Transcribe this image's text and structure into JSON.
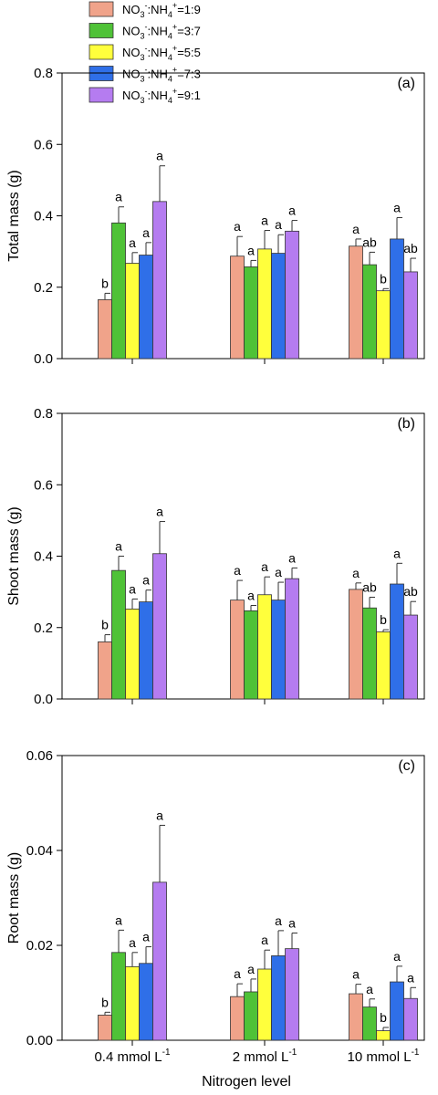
{
  "colors": [
    "#f0a38a",
    "#4fc237",
    "#ffff3c",
    "#2f6fe8",
    "#b57cf0"
  ],
  "legend": [
    {
      "base": "NO",
      "sub1": "3",
      "sup1": "-",
      "mid": ":NH",
      "sub2": "4",
      "sup2": "+",
      "ratio": "=1:9"
    },
    {
      "base": "NO",
      "sub1": "3",
      "sup1": "-",
      "mid": ":NH",
      "sub2": "4",
      "sup2": "+",
      "ratio": "=3:7"
    },
    {
      "base": "NO",
      "sub1": "3",
      "sup1": "-",
      "mid": ":NH",
      "sub2": "4",
      "sup2": "+",
      "ratio": "=5:5"
    },
    {
      "base": "NO",
      "sub1": "3",
      "sup1": "-",
      "mid": ":NH",
      "sub2": "4",
      "sup2": "+",
      "ratio": "=7:3"
    },
    {
      "base": "NO",
      "sub1": "3",
      "sup1": "-",
      "mid": ":NH",
      "sub2": "4",
      "sup2": "+",
      "ratio": "=9:1"
    }
  ],
  "x_axis": {
    "title": "Nitrogen level",
    "tick_labels": [
      {
        "main": "0.4 mmol L",
        "sup": "-1"
      },
      {
        "main": "2 mmol L",
        "sup": "-1"
      },
      {
        "main": "10 mmol L",
        "sup": "-1"
      }
    ]
  },
  "chart_data": [
    {
      "type": "bar",
      "panel_label": "(a)",
      "ylabel": "Total mass (g)",
      "ylim": [
        0,
        0.8
      ],
      "yticks": [
        "0.0",
        "0.2",
        "0.4",
        "0.6",
        "0.8"
      ],
      "categories": [
        "0.4 mmol L-1",
        "2 mmol L-1",
        "10 mmol L-1"
      ],
      "series": [
        {
          "name": "NO3-:NH4+=1:9",
          "values": [
            0.165,
            0.287,
            0.315
          ],
          "errors": [
            0.018,
            0.055,
            0.02
          ],
          "letters": [
            "b",
            "a",
            "a"
          ]
        },
        {
          "name": "NO3-:NH4+=3:7",
          "values": [
            0.38,
            0.257,
            0.263
          ],
          "errors": [
            0.045,
            0.018,
            0.035
          ],
          "letters": [
            "a",
            "a",
            "ab"
          ]
        },
        {
          "name": "NO3-:NH4+=5:5",
          "values": [
            0.267,
            0.307,
            0.19
          ],
          "errors": [
            0.03,
            0.052,
            0.006
          ],
          "letters": [
            "a",
            "a",
            "b"
          ]
        },
        {
          "name": "NO3-:NH4+=7:3",
          "values": [
            0.29,
            0.295,
            0.335
          ],
          "errors": [
            0.035,
            0.052,
            0.06
          ],
          "letters": [
            "a",
            "a",
            "a"
          ]
        },
        {
          "name": "NO3-:NH4+=9:1",
          "values": [
            0.44,
            0.357,
            0.243
          ],
          "errors": [
            0.1,
            0.03,
            0.038
          ],
          "letters": [
            "a",
            "a",
            "ab"
          ]
        }
      ]
    },
    {
      "type": "bar",
      "panel_label": "(b)",
      "ylabel": "Shoot mass (g)",
      "ylim": [
        0,
        0.8
      ],
      "yticks": [
        "0.0",
        "0.2",
        "0.4",
        "0.6",
        "0.8"
      ],
      "categories": [
        "0.4 mmol L-1",
        "2 mmol L-1",
        "10 mmol L-1"
      ],
      "series": [
        {
          "name": "NO3-:NH4+=1:9",
          "values": [
            0.16,
            0.277,
            0.307
          ],
          "errors": [
            0.02,
            0.055,
            0.018
          ],
          "letters": [
            "b",
            "a",
            "a"
          ]
        },
        {
          "name": "NO3-:NH4+=3:7",
          "values": [
            0.36,
            0.247,
            0.255
          ],
          "errors": [
            0.04,
            0.015,
            0.03
          ],
          "letters": [
            "a",
            "a",
            "ab"
          ]
        },
        {
          "name": "NO3-:NH4+=5:5",
          "values": [
            0.252,
            0.292,
            0.188
          ],
          "errors": [
            0.028,
            0.05,
            0.006
          ],
          "letters": [
            "a",
            "a",
            "b"
          ]
        },
        {
          "name": "NO3-:NH4+=7:3",
          "values": [
            0.272,
            0.277,
            0.322
          ],
          "errors": [
            0.033,
            0.05,
            0.058
          ],
          "letters": [
            "a",
            "a",
            "a"
          ]
        },
        {
          "name": "NO3-:NH4+=9:1",
          "values": [
            0.407,
            0.337,
            0.235
          ],
          "errors": [
            0.09,
            0.03,
            0.038
          ],
          "letters": [
            "a",
            "a",
            "ab"
          ]
        }
      ]
    },
    {
      "type": "bar",
      "panel_label": "(c)",
      "ylabel": "Root mass (g)",
      "ylim": [
        0,
        0.06
      ],
      "yticks": [
        "0.00",
        "0.02",
        "0.04",
        "0.06"
      ],
      "categories": [
        "0.4 mmol L-1",
        "2 mmol L-1",
        "10 mmol L-1"
      ],
      "series": [
        {
          "name": "NO3-:NH4+=1:9",
          "values": [
            0.0053,
            0.0092,
            0.0098
          ],
          "errors": [
            0.0006,
            0.0027,
            0.002
          ],
          "letters": [
            "b",
            "a",
            "a"
          ]
        },
        {
          "name": "NO3-:NH4+=3:7",
          "values": [
            0.0185,
            0.0102,
            0.007
          ],
          "errors": [
            0.0047,
            0.0027,
            0.0017
          ],
          "letters": [
            "a",
            "a",
            "a"
          ]
        },
        {
          "name": "NO3-:NH4+=5:5",
          "values": [
            0.0155,
            0.015,
            0.002
          ],
          "errors": [
            0.003,
            0.004,
            0.0007
          ],
          "letters": [
            "a",
            "a",
            "b"
          ]
        },
        {
          "name": "NO3-:NH4+=7:3",
          "values": [
            0.0162,
            0.0178,
            0.0123
          ],
          "errors": [
            0.0035,
            0.0053,
            0.0033
          ],
          "letters": [
            "a",
            "a",
            "a"
          ]
        },
        {
          "name": "NO3-:NH4+=9:1",
          "values": [
            0.0333,
            0.0193,
            0.0088
          ],
          "errors": [
            0.012,
            0.0033,
            0.0023
          ],
          "letters": [
            "a",
            "a",
            "a"
          ]
        }
      ]
    }
  ]
}
